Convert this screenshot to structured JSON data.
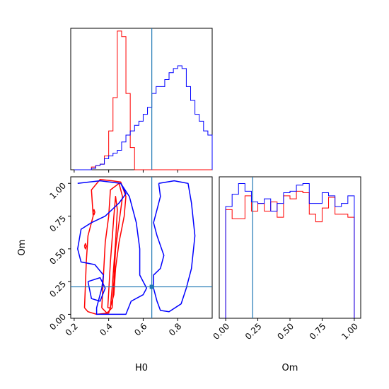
{
  "chart_data": [
    {
      "panel": "H0 histogram (top-left)",
      "type": "bar",
      "bin_edges": [
        0.2,
        0.225,
        0.25,
        0.275,
        0.3,
        0.325,
        0.35,
        0.375,
        0.4,
        0.425,
        0.45,
        0.475,
        0.5,
        0.525,
        0.55,
        0.575,
        0.6,
        0.625,
        0.65,
        0.675,
        0.7,
        0.725,
        0.75,
        0.775,
        0.8,
        0.825,
        0.85,
        0.875,
        0.9,
        0.925,
        0.95,
        0.975,
        1.0
      ],
      "series": [
        {
          "color": "#ff0000",
          "counts": [
            0,
            0,
            0,
            0,
            2,
            3,
            4,
            10,
            28,
            52,
            100,
            96,
            55,
            16,
            0,
            0,
            0,
            0,
            0,
            0,
            0,
            0,
            0,
            0,
            0,
            0,
            0,
            0,
            0,
            0,
            0,
            0
          ]
        },
        {
          "color": "#0000ff",
          "counts": [
            0,
            0,
            0,
            0,
            1,
            3,
            4,
            8,
            10,
            12,
            14,
            20,
            25,
            28,
            32,
            35,
            40,
            45,
            55,
            60,
            60,
            65,
            70,
            73,
            75,
            73,
            60,
            50,
            40,
            35,
            28,
            25
          ]
        }
      ],
      "truth_line": 0.65,
      "xlim": [
        0.18,
        1.0
      ],
      "show_tick_labels": false
    },
    {
      "panel": "Om vs H0 contours (bottom-left)",
      "type": "scatter",
      "xlabel": "H0",
      "ylabel": "Om",
      "xlim": [
        0.18,
        1.0
      ],
      "ylim": [
        -0.03,
        1.05
      ],
      "xticks": [
        "0.2",
        "0.4",
        "0.6",
        "0.8"
      ],
      "yticks": [
        "0.00",
        "0.25",
        "0.50",
        "0.75",
        "1.00"
      ],
      "truth": {
        "x": 0.65,
        "y": 0.21
      },
      "series": [
        {
          "color": "#ff0000",
          "contours": [
            [
              [
                0.26,
                0.05
              ],
              [
                0.27,
                0.4
              ],
              [
                0.28,
                0.6
              ],
              [
                0.31,
                0.75
              ],
              [
                0.3,
                0.95
              ],
              [
                0.35,
                1.03
              ],
              [
                0.42,
                1.02
              ],
              [
                0.47,
                1.01
              ],
              [
                0.5,
                0.9
              ],
              [
                0.49,
                0.75
              ],
              [
                0.46,
                0.55
              ],
              [
                0.44,
                0.35
              ],
              [
                0.43,
                0.15
              ],
              [
                0.4,
                0.01
              ],
              [
                0.33,
                0.0
              ],
              [
                0.28,
                0.02
              ],
              [
                0.26,
                0.05
              ]
            ],
            [
              [
                0.36,
                0.05
              ],
              [
                0.37,
                0.3
              ],
              [
                0.38,
                0.55
              ],
              [
                0.4,
                0.75
              ],
              [
                0.41,
                0.95
              ],
              [
                0.46,
                1.0
              ],
              [
                0.48,
                0.9
              ],
              [
                0.46,
                0.7
              ],
              [
                0.44,
                0.5
              ],
              [
                0.43,
                0.25
              ],
              [
                0.42,
                0.05
              ],
              [
                0.39,
                0.01
              ],
              [
                0.36,
                0.05
              ]
            ],
            [
              [
                0.395,
                0.05
              ],
              [
                0.41,
                0.4
              ],
              [
                0.43,
                0.75
              ],
              [
                0.44,
                0.9
              ],
              [
                0.45,
                0.8
              ],
              [
                0.44,
                0.55
              ],
              [
                0.42,
                0.2
              ],
              [
                0.41,
                0.05
              ],
              [
                0.395,
                0.05
              ]
            ],
            [
              [
                0.26,
                0.52
              ],
              [
                0.265,
                0.54
              ],
              [
                0.27,
                0.52
              ],
              [
                0.265,
                0.5
              ],
              [
                0.26,
                0.52
              ]
            ],
            [
              [
                0.31,
                0.78
              ],
              [
                0.315,
                0.8
              ],
              [
                0.32,
                0.78
              ],
              [
                0.315,
                0.76
              ],
              [
                0.31,
                0.78
              ]
            ]
          ]
        },
        {
          "color": "#0000ff",
          "contours": [
            [
              [
                0.22,
                1.0
              ],
              [
                0.35,
                1.02
              ],
              [
                0.47,
                1.0
              ],
              [
                0.5,
                0.92
              ],
              [
                0.46,
                0.85
              ],
              [
                0.38,
                0.75
              ],
              [
                0.3,
                0.7
              ],
              [
                0.24,
                0.65
              ],
              [
                0.22,
                0.5
              ],
              [
                0.24,
                0.4
              ],
              [
                0.32,
                0.38
              ],
              [
                0.37,
                0.3
              ],
              [
                0.36,
                0.2
              ],
              [
                0.33,
                0.05
              ],
              [
                0.33,
                0.0
              ],
              [
                0.5,
                0.0
              ],
              [
                0.53,
                0.1
              ],
              [
                0.6,
                0.15
              ],
              [
                0.62,
                0.2
              ],
              [
                0.6,
                0.25
              ],
              [
                0.58,
                0.3
              ],
              [
                0.58,
                0.5
              ],
              [
                0.56,
                0.7
              ],
              [
                0.52,
                0.9
              ],
              [
                0.47,
                1.0
              ]
            ],
            [
              [
                0.69,
                1.0
              ],
              [
                0.78,
                1.02
              ],
              [
                0.86,
                1.0
              ],
              [
                0.88,
                0.85
              ],
              [
                0.9,
                0.6
              ],
              [
                0.88,
                0.35
              ],
              [
                0.85,
                0.2
              ],
              [
                0.82,
                0.08
              ],
              [
                0.75,
                0.02
              ],
              [
                0.7,
                0.03
              ],
              [
                0.68,
                0.1
              ],
              [
                0.66,
                0.2
              ],
              [
                0.66,
                0.3
              ],
              [
                0.7,
                0.35
              ],
              [
                0.72,
                0.45
              ],
              [
                0.68,
                0.6
              ],
              [
                0.66,
                0.7
              ],
              [
                0.68,
                0.8
              ],
              [
                0.7,
                0.9
              ],
              [
                0.69,
                1.0
              ]
            ],
            [
              [
                0.28,
                0.25
              ],
              [
                0.35,
                0.28
              ],
              [
                0.38,
                0.2
              ],
              [
                0.35,
                0.1
              ],
              [
                0.3,
                0.12
              ],
              [
                0.28,
                0.25
              ]
            ]
          ]
        }
      ]
    },
    {
      "panel": "Om histogram (bottom-right)",
      "type": "bar",
      "xlabel": "Om",
      "bin_edges": [
        0.0,
        0.05,
        0.1,
        0.15,
        0.2,
        0.25,
        0.3,
        0.35,
        0.4,
        0.45,
        0.5,
        0.55,
        0.6,
        0.65,
        0.7,
        0.75,
        0.8,
        0.85,
        0.9,
        0.95,
        1.0
      ],
      "xlim": [
        -0.05,
        1.05
      ],
      "xticks": [
        "0.00",
        "0.25",
        "0.50",
        "0.75",
        "1.00"
      ],
      "truth_line": 0.21,
      "series": [
        {
          "color": "#ff0000",
          "counts": [
            71,
            65,
            65,
            80,
            70,
            75,
            70,
            76,
            66,
            80,
            78,
            83,
            82,
            68,
            63,
            72,
            79,
            68,
            68,
            66
          ]
        },
        {
          "color": "#0000ff",
          "counts": [
            73,
            81,
            88,
            83,
            76,
            75,
            78,
            70,
            75,
            82,
            83,
            87,
            88,
            75,
            75,
            82,
            80,
            73,
            75,
            80
          ]
        }
      ]
    }
  ]
}
